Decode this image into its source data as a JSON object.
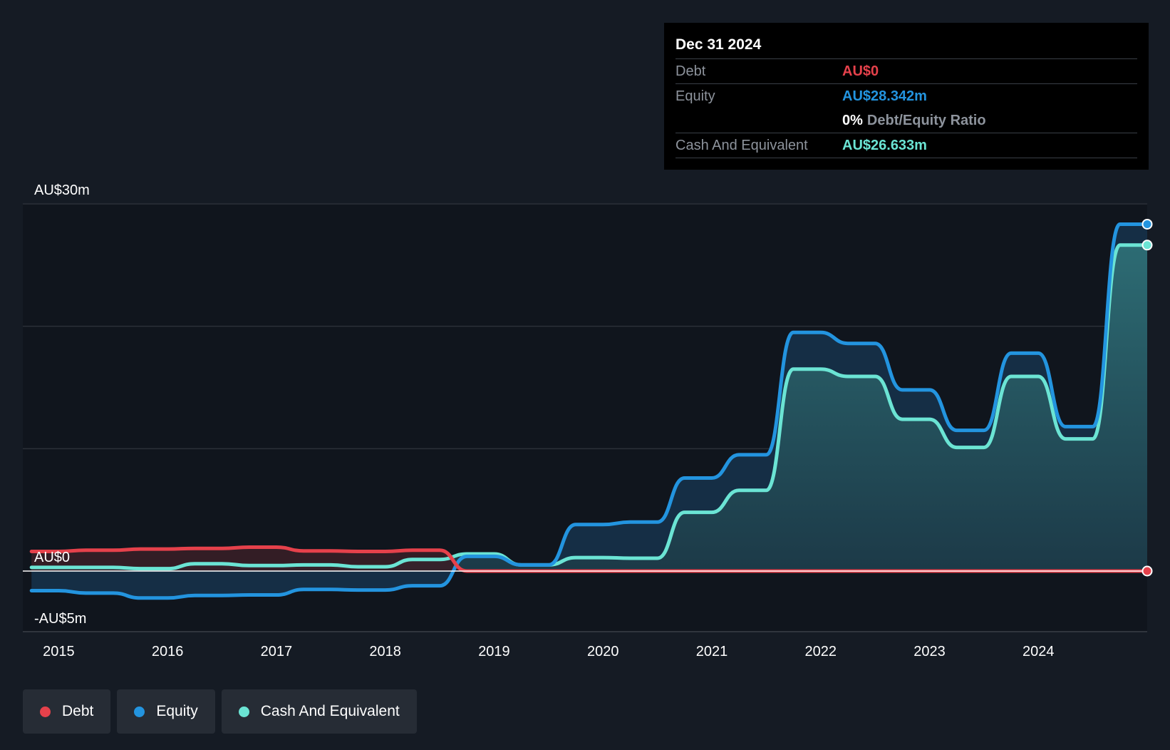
{
  "chart_data": {
    "type": "area",
    "y_unit": "AU$ millions",
    "ylim": [
      -5,
      30
    ],
    "y_tick_labels": [
      {
        "value": 30,
        "label": "AU$30m"
      },
      {
        "value": 0,
        "label": "AU$0"
      },
      {
        "value": -5,
        "label": "-AU$5m"
      }
    ],
    "x_range": [
      2014.67,
      2025.0
    ],
    "x_ticks": [
      "2015",
      "2016",
      "2017",
      "2018",
      "2019",
      "2020",
      "2021",
      "2022",
      "2023",
      "2024"
    ],
    "grid": true,
    "legend_position": "bottom-left",
    "series": [
      {
        "name": "Debt",
        "color": "#e5414b",
        "points": [
          [
            2014.75,
            1.6
          ],
          [
            2015.0,
            1.6
          ],
          [
            2015.25,
            1.7
          ],
          [
            2015.5,
            1.7
          ],
          [
            2015.75,
            1.8
          ],
          [
            2016.0,
            1.8
          ],
          [
            2016.25,
            1.85
          ],
          [
            2016.5,
            1.85
          ],
          [
            2016.75,
            1.95
          ],
          [
            2017.0,
            1.95
          ],
          [
            2017.25,
            1.65
          ],
          [
            2017.5,
            1.65
          ],
          [
            2017.75,
            1.6
          ],
          [
            2018.0,
            1.6
          ],
          [
            2018.25,
            1.7
          ],
          [
            2018.5,
            1.7
          ],
          [
            2018.75,
            0.0
          ],
          [
            2019.0,
            0.0
          ],
          [
            2024.0,
            0.0
          ],
          [
            2024.75,
            0.0
          ],
          [
            2025.0,
            0.0
          ]
        ]
      },
      {
        "name": "Equity",
        "color": "#2394df",
        "points": [
          [
            2014.75,
            -1.6
          ],
          [
            2015.0,
            -1.6
          ],
          [
            2015.25,
            -1.8
          ],
          [
            2015.5,
            -1.8
          ],
          [
            2015.75,
            -2.2
          ],
          [
            2016.0,
            -2.2
          ],
          [
            2016.25,
            -2.0
          ],
          [
            2016.5,
            -2.0
          ],
          [
            2016.75,
            -1.95
          ],
          [
            2017.0,
            -1.95
          ],
          [
            2017.25,
            -1.5
          ],
          [
            2017.5,
            -1.5
          ],
          [
            2017.75,
            -1.55
          ],
          [
            2018.0,
            -1.55
          ],
          [
            2018.25,
            -1.2
          ],
          [
            2018.5,
            -1.2
          ],
          [
            2018.75,
            1.2
          ],
          [
            2019.0,
            1.2
          ],
          [
            2019.25,
            0.5
          ],
          [
            2019.5,
            0.5
          ],
          [
            2019.75,
            3.8
          ],
          [
            2020.0,
            3.8
          ],
          [
            2020.25,
            4.0
          ],
          [
            2020.5,
            4.0
          ],
          [
            2020.75,
            7.6
          ],
          [
            2021.0,
            7.6
          ],
          [
            2021.25,
            9.5
          ],
          [
            2021.5,
            9.5
          ],
          [
            2021.75,
            19.5
          ],
          [
            2022.0,
            19.5
          ],
          [
            2022.25,
            18.6
          ],
          [
            2022.5,
            18.6
          ],
          [
            2022.75,
            14.8
          ],
          [
            2023.0,
            14.8
          ],
          [
            2023.25,
            11.5
          ],
          [
            2023.5,
            11.5
          ],
          [
            2023.75,
            17.8
          ],
          [
            2024.0,
            17.8
          ],
          [
            2024.25,
            11.8
          ],
          [
            2024.5,
            11.8
          ],
          [
            2024.75,
            28.342
          ],
          [
            2025.0,
            28.342
          ]
        ]
      },
      {
        "name": "Cash And Equivalent",
        "color": "#6be4d4",
        "points": [
          [
            2014.75,
            0.3
          ],
          [
            2015.0,
            0.3
          ],
          [
            2015.25,
            0.3
          ],
          [
            2015.5,
            0.3
          ],
          [
            2015.75,
            0.2
          ],
          [
            2016.0,
            0.2
          ],
          [
            2016.25,
            0.6
          ],
          [
            2016.5,
            0.6
          ],
          [
            2016.75,
            0.45
          ],
          [
            2017.0,
            0.45
          ],
          [
            2017.25,
            0.5
          ],
          [
            2017.5,
            0.5
          ],
          [
            2017.75,
            0.35
          ],
          [
            2018.0,
            0.35
          ],
          [
            2018.25,
            0.95
          ],
          [
            2018.5,
            0.95
          ],
          [
            2018.75,
            1.4
          ],
          [
            2019.0,
            1.4
          ],
          [
            2019.25,
            0.5
          ],
          [
            2019.5,
            0.5
          ],
          [
            2019.75,
            1.1
          ],
          [
            2020.0,
            1.1
          ],
          [
            2020.25,
            1.05
          ],
          [
            2020.5,
            1.05
          ],
          [
            2020.75,
            4.8
          ],
          [
            2021.0,
            4.8
          ],
          [
            2021.25,
            6.6
          ],
          [
            2021.5,
            6.6
          ],
          [
            2021.75,
            16.5
          ],
          [
            2022.0,
            16.5
          ],
          [
            2022.25,
            15.9
          ],
          [
            2022.5,
            15.9
          ],
          [
            2022.75,
            12.4
          ],
          [
            2023.0,
            12.4
          ],
          [
            2023.25,
            10.1
          ],
          [
            2023.5,
            10.1
          ],
          [
            2023.75,
            15.9
          ],
          [
            2024.0,
            15.9
          ],
          [
            2024.25,
            10.8
          ],
          [
            2024.5,
            10.8
          ],
          [
            2024.75,
            26.633
          ],
          [
            2025.0,
            26.633
          ]
        ]
      }
    ]
  },
  "tooltip": {
    "date": "Dec 31 2024",
    "debt_label": "Debt",
    "debt_value": "AU$0",
    "equity_label": "Equity",
    "equity_value": "AU$28.342m",
    "ratio_value": "0%",
    "ratio_label": "Debt/Equity Ratio",
    "cash_label": "Cash And Equivalent",
    "cash_value": "AU$26.633m"
  },
  "legend": {
    "items": [
      {
        "label": "Debt",
        "color": "#e5414b"
      },
      {
        "label": "Equity",
        "color": "#2394df"
      },
      {
        "label": "Cash And Equivalent",
        "color": "#6be4d4"
      }
    ]
  },
  "colors": {
    "background": "#151b24",
    "plot_background": "#10151d",
    "grid": "#2b3038",
    "debt": "#e5414b",
    "equity": "#2394df",
    "cash": "#6be4d4"
  }
}
